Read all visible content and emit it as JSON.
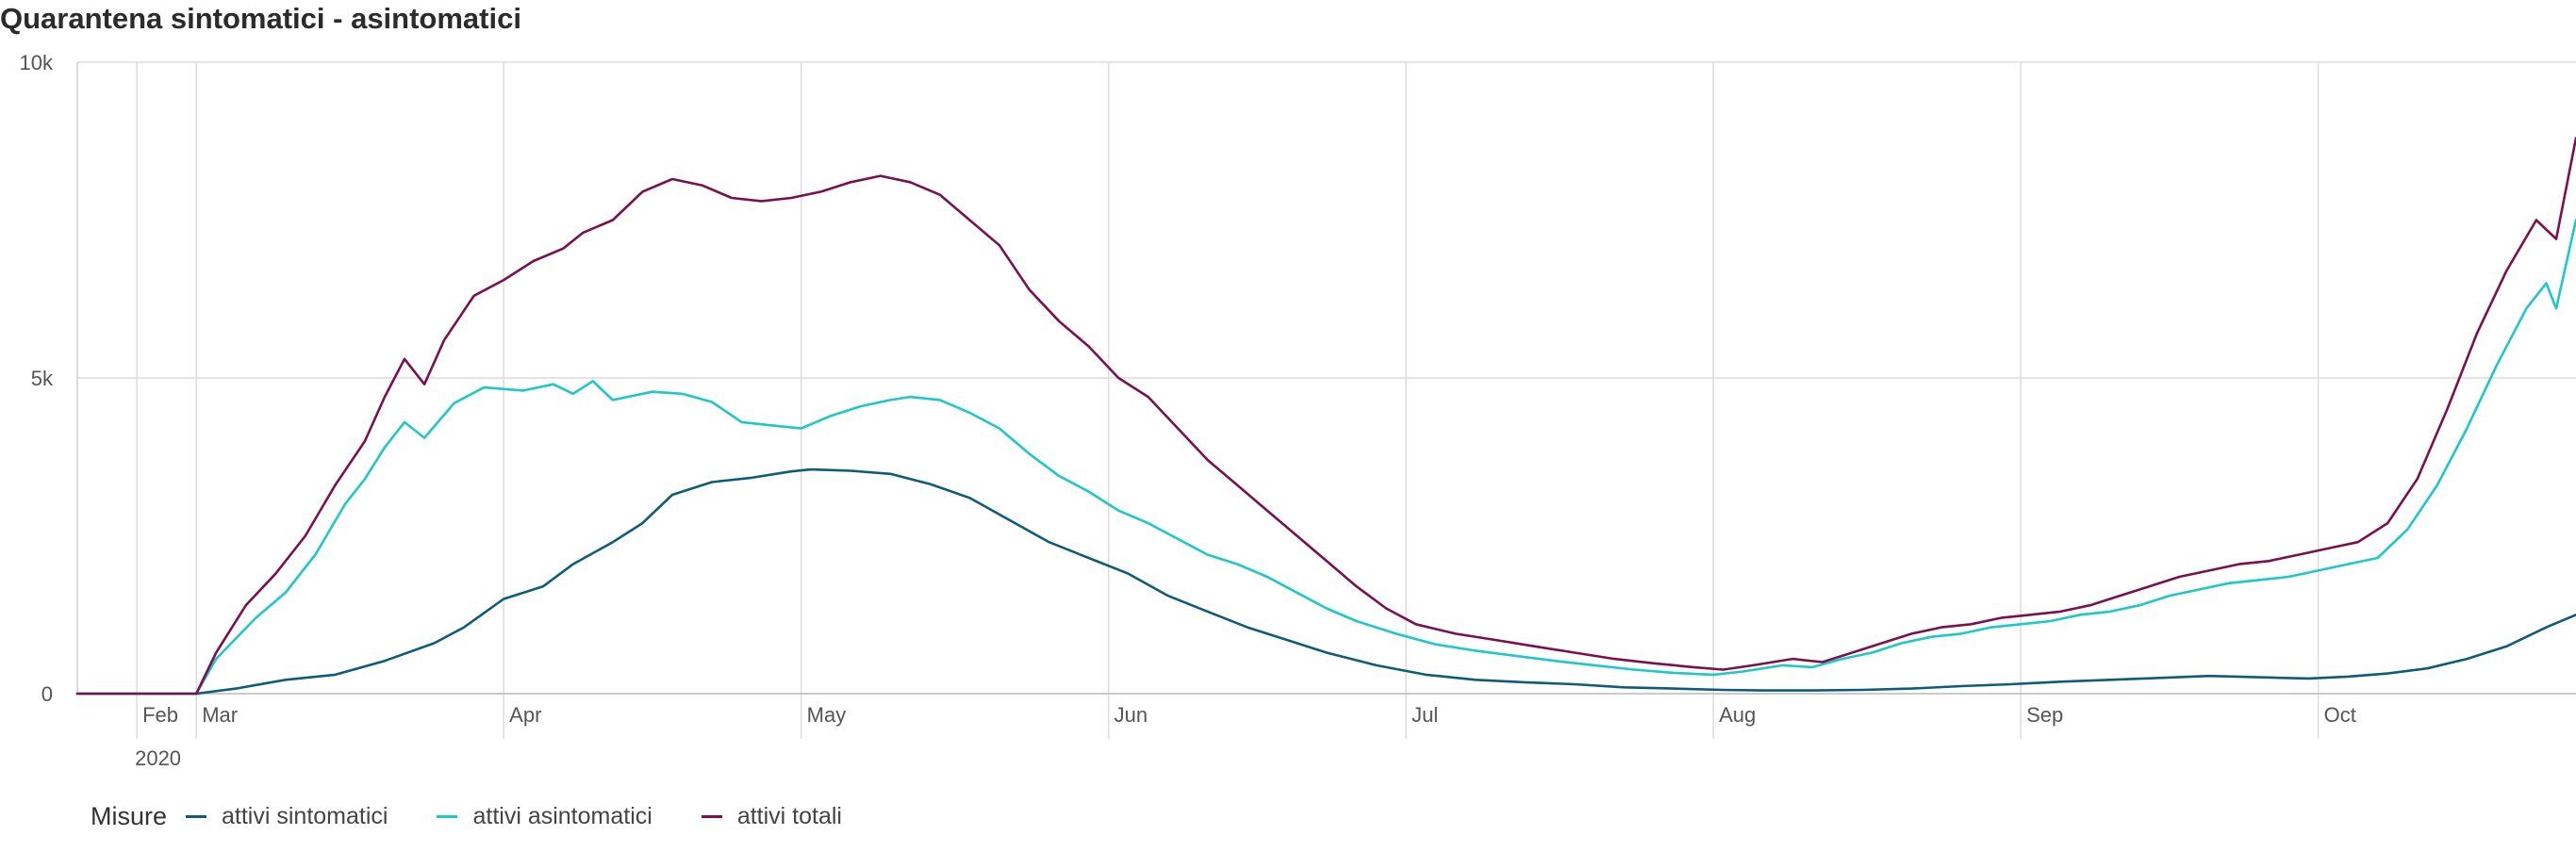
{
  "title": "Quarantena sintomatici - asintomatici",
  "legend": {
    "title": "Misure",
    "items": [
      {
        "label": "attivi sintomatici",
        "color": "#0f5c7a"
      },
      {
        "label": "attivi asintomatici",
        "color": "#1ec8c8"
      },
      {
        "label": "attivi totali",
        "color": "#7a1050"
      }
    ]
  },
  "chart_data": {
    "type": "line",
    "title": "Quarantena sintomatici - asintomatici",
    "xlabel": "",
    "ylabel": "",
    "x_range": [
      "2020-02-18",
      "2020-10-27"
    ],
    "ylim": [
      0,
      10000
    ],
    "y_ticks": [
      {
        "value": 0,
        "label": "0"
      },
      {
        "value": 5000,
        "label": "5k"
      },
      {
        "value": 10000,
        "label": "10k"
      }
    ],
    "x_ticks": [
      {
        "date": "2020-02-24",
        "label": "Feb"
      },
      {
        "date": "2020-03-01",
        "label": "Mar"
      },
      {
        "date": "2020-04-01",
        "label": "Apr"
      },
      {
        "date": "2020-05-01",
        "label": "May"
      },
      {
        "date": "2020-06-01",
        "label": "Jun"
      },
      {
        "date": "2020-07-01",
        "label": "Jul"
      },
      {
        "date": "2020-08-01",
        "label": "Aug"
      },
      {
        "date": "2020-09-01",
        "label": "Sep"
      },
      {
        "date": "2020-10-01",
        "label": "Oct"
      }
    ],
    "year_label": "2020",
    "grid": true,
    "legend_position": "bottom-left",
    "series": [
      {
        "name": "attivi sintomatici",
        "color": "#0f5c7a",
        "points": [
          [
            "2020-02-18",
            0
          ],
          [
            "2020-02-25",
            0
          ],
          [
            "2020-03-01",
            0
          ],
          [
            "2020-03-05",
            80
          ],
          [
            "2020-03-10",
            220
          ],
          [
            "2020-03-15",
            300
          ],
          [
            "2020-03-20",
            520
          ],
          [
            "2020-03-25",
            800
          ],
          [
            "2020-03-28",
            1050
          ],
          [
            "2020-04-01",
            1500
          ],
          [
            "2020-04-05",
            1700
          ],
          [
            "2020-04-08",
            2050
          ],
          [
            "2020-04-12",
            2400
          ],
          [
            "2020-04-15",
            2700
          ],
          [
            "2020-04-18",
            3150
          ],
          [
            "2020-04-22",
            3350
          ],
          [
            "2020-04-26",
            3420
          ],
          [
            "2020-04-30",
            3520
          ],
          [
            "2020-05-02",
            3550
          ],
          [
            "2020-05-06",
            3530
          ],
          [
            "2020-05-10",
            3480
          ],
          [
            "2020-05-14",
            3320
          ],
          [
            "2020-05-18",
            3100
          ],
          [
            "2020-05-22",
            2750
          ],
          [
            "2020-05-26",
            2400
          ],
          [
            "2020-05-30",
            2150
          ],
          [
            "2020-06-03",
            1900
          ],
          [
            "2020-06-07",
            1550
          ],
          [
            "2020-06-11",
            1300
          ],
          [
            "2020-06-15",
            1050
          ],
          [
            "2020-06-19",
            850
          ],
          [
            "2020-06-23",
            650
          ],
          [
            "2020-06-28",
            450
          ],
          [
            "2020-07-03",
            300
          ],
          [
            "2020-07-08",
            220
          ],
          [
            "2020-07-13",
            180
          ],
          [
            "2020-07-18",
            150
          ],
          [
            "2020-07-23",
            100
          ],
          [
            "2020-07-28",
            80
          ],
          [
            "2020-08-02",
            60
          ],
          [
            "2020-08-06",
            50
          ],
          [
            "2020-08-11",
            50
          ],
          [
            "2020-08-16",
            60
          ],
          [
            "2020-08-21",
            80
          ],
          [
            "2020-08-26",
            120
          ],
          [
            "2020-08-31",
            150
          ],
          [
            "2020-09-05",
            190
          ],
          [
            "2020-09-10",
            220
          ],
          [
            "2020-09-15",
            250
          ],
          [
            "2020-09-20",
            280
          ],
          [
            "2020-09-25",
            260
          ],
          [
            "2020-09-30",
            240
          ],
          [
            "2020-10-04",
            270
          ],
          [
            "2020-10-08",
            320
          ],
          [
            "2020-10-12",
            400
          ],
          [
            "2020-10-16",
            550
          ],
          [
            "2020-10-20",
            750
          ],
          [
            "2020-10-24",
            1050
          ],
          [
            "2020-10-27",
            1250
          ]
        ]
      },
      {
        "name": "attivi asintomatici",
        "color": "#1ec8c8",
        "points": [
          [
            "2020-02-18",
            0
          ],
          [
            "2020-02-25",
            0
          ],
          [
            "2020-03-01",
            0
          ],
          [
            "2020-03-03",
            550
          ],
          [
            "2020-03-07",
            1200
          ],
          [
            "2020-03-10",
            1600
          ],
          [
            "2020-03-13",
            2200
          ],
          [
            "2020-03-16",
            3000
          ],
          [
            "2020-03-18",
            3400
          ],
          [
            "2020-03-20",
            3900
          ],
          [
            "2020-03-22",
            4300
          ],
          [
            "2020-03-24",
            4050
          ],
          [
            "2020-03-27",
            4600
          ],
          [
            "2020-03-30",
            4850
          ],
          [
            "2020-04-03",
            4800
          ],
          [
            "2020-04-06",
            4900
          ],
          [
            "2020-04-08",
            4750
          ],
          [
            "2020-04-10",
            4950
          ],
          [
            "2020-04-12",
            4650
          ],
          [
            "2020-04-16",
            4780
          ],
          [
            "2020-04-19",
            4750
          ],
          [
            "2020-04-22",
            4620
          ],
          [
            "2020-04-25",
            4300
          ],
          [
            "2020-04-28",
            4250
          ],
          [
            "2020-05-01",
            4200
          ],
          [
            "2020-05-04",
            4400
          ],
          [
            "2020-05-07",
            4550
          ],
          [
            "2020-05-10",
            4650
          ],
          [
            "2020-05-12",
            4700
          ],
          [
            "2020-05-15",
            4650
          ],
          [
            "2020-05-18",
            4450
          ],
          [
            "2020-05-21",
            4200
          ],
          [
            "2020-05-24",
            3800
          ],
          [
            "2020-05-27",
            3450
          ],
          [
            "2020-05-30",
            3200
          ],
          [
            "2020-06-02",
            2900
          ],
          [
            "2020-06-05",
            2700
          ],
          [
            "2020-06-08",
            2450
          ],
          [
            "2020-06-11",
            2200
          ],
          [
            "2020-06-14",
            2050
          ],
          [
            "2020-06-17",
            1850
          ],
          [
            "2020-06-20",
            1600
          ],
          [
            "2020-06-23",
            1350
          ],
          [
            "2020-06-26",
            1150
          ],
          [
            "2020-06-30",
            950
          ],
          [
            "2020-07-04",
            780
          ],
          [
            "2020-07-08",
            680
          ],
          [
            "2020-07-12",
            600
          ],
          [
            "2020-07-16",
            520
          ],
          [
            "2020-07-20",
            450
          ],
          [
            "2020-07-24",
            380
          ],
          [
            "2020-07-28",
            330
          ],
          [
            "2020-08-01",
            300
          ],
          [
            "2020-08-04",
            350
          ],
          [
            "2020-08-08",
            450
          ],
          [
            "2020-08-11",
            420
          ],
          [
            "2020-08-14",
            550
          ],
          [
            "2020-08-17",
            650
          ],
          [
            "2020-08-20",
            800
          ],
          [
            "2020-08-23",
            900
          ],
          [
            "2020-08-26",
            950
          ],
          [
            "2020-08-29",
            1050
          ],
          [
            "2020-09-01",
            1100
          ],
          [
            "2020-09-04",
            1150
          ],
          [
            "2020-09-07",
            1250
          ],
          [
            "2020-09-10",
            1300
          ],
          [
            "2020-09-13",
            1400
          ],
          [
            "2020-09-16",
            1550
          ],
          [
            "2020-09-19",
            1650
          ],
          [
            "2020-09-22",
            1750
          ],
          [
            "2020-09-25",
            1800
          ],
          [
            "2020-09-28",
            1850
          ],
          [
            "2020-10-01",
            1950
          ],
          [
            "2020-10-04",
            2050
          ],
          [
            "2020-10-07",
            2150
          ],
          [
            "2020-10-10",
            2600
          ],
          [
            "2020-10-13",
            3300
          ],
          [
            "2020-10-16",
            4200
          ],
          [
            "2020-10-19",
            5200
          ],
          [
            "2020-10-22",
            6100
          ],
          [
            "2020-10-24",
            6500
          ],
          [
            "2020-10-25",
            6100
          ],
          [
            "2020-10-27",
            7500
          ]
        ]
      },
      {
        "name": "attivi totali",
        "color": "#7a1050",
        "points": [
          [
            "2020-02-18",
            0
          ],
          [
            "2020-02-25",
            0
          ],
          [
            "2020-03-01",
            0
          ],
          [
            "2020-03-03",
            650
          ],
          [
            "2020-03-06",
            1400
          ],
          [
            "2020-03-09",
            1900
          ],
          [
            "2020-03-12",
            2500
          ],
          [
            "2020-03-15",
            3300
          ],
          [
            "2020-03-18",
            4000
          ],
          [
            "2020-03-20",
            4700
          ],
          [
            "2020-03-22",
            5300
          ],
          [
            "2020-03-24",
            4900
          ],
          [
            "2020-03-26",
            5600
          ],
          [
            "2020-03-29",
            6300
          ],
          [
            "2020-04-01",
            6550
          ],
          [
            "2020-04-04",
            6850
          ],
          [
            "2020-04-07",
            7050
          ],
          [
            "2020-04-09",
            7300
          ],
          [
            "2020-04-12",
            7500
          ],
          [
            "2020-04-15",
            7950
          ],
          [
            "2020-04-18",
            8150
          ],
          [
            "2020-04-21",
            8050
          ],
          [
            "2020-04-24",
            7850
          ],
          [
            "2020-04-27",
            7800
          ],
          [
            "2020-04-30",
            7850
          ],
          [
            "2020-05-03",
            7950
          ],
          [
            "2020-05-06",
            8100
          ],
          [
            "2020-05-09",
            8200
          ],
          [
            "2020-05-12",
            8100
          ],
          [
            "2020-05-15",
            7900
          ],
          [
            "2020-05-18",
            7500
          ],
          [
            "2020-05-21",
            7100
          ],
          [
            "2020-05-24",
            6400
          ],
          [
            "2020-05-27",
            5900
          ],
          [
            "2020-05-30",
            5500
          ],
          [
            "2020-06-02",
            5000
          ],
          [
            "2020-06-05",
            4700
          ],
          [
            "2020-06-08",
            4200
          ],
          [
            "2020-06-11",
            3700
          ],
          [
            "2020-06-14",
            3300
          ],
          [
            "2020-06-17",
            2900
          ],
          [
            "2020-06-20",
            2500
          ],
          [
            "2020-06-23",
            2100
          ],
          [
            "2020-06-26",
            1700
          ],
          [
            "2020-06-29",
            1350
          ],
          [
            "2020-07-02",
            1100
          ],
          [
            "2020-07-06",
            950
          ],
          [
            "2020-07-10",
            850
          ],
          [
            "2020-07-14",
            750
          ],
          [
            "2020-07-18",
            650
          ],
          [
            "2020-07-22",
            550
          ],
          [
            "2020-07-26",
            480
          ],
          [
            "2020-07-30",
            420
          ],
          [
            "2020-08-02",
            380
          ],
          [
            "2020-08-05",
            450
          ],
          [
            "2020-08-09",
            550
          ],
          [
            "2020-08-12",
            500
          ],
          [
            "2020-08-15",
            650
          ],
          [
            "2020-08-18",
            800
          ],
          [
            "2020-08-21",
            950
          ],
          [
            "2020-08-24",
            1050
          ],
          [
            "2020-08-27",
            1100
          ],
          [
            "2020-08-30",
            1200
          ],
          [
            "2020-09-02",
            1250
          ],
          [
            "2020-09-05",
            1300
          ],
          [
            "2020-09-08",
            1400
          ],
          [
            "2020-09-11",
            1550
          ],
          [
            "2020-09-14",
            1700
          ],
          [
            "2020-09-17",
            1850
          ],
          [
            "2020-09-20",
            1950
          ],
          [
            "2020-09-23",
            2050
          ],
          [
            "2020-09-26",
            2100
          ],
          [
            "2020-09-29",
            2200
          ],
          [
            "2020-10-02",
            2300
          ],
          [
            "2020-10-05",
            2400
          ],
          [
            "2020-10-08",
            2700
          ],
          [
            "2020-10-11",
            3400
          ],
          [
            "2020-10-14",
            4500
          ],
          [
            "2020-10-17",
            5700
          ],
          [
            "2020-10-20",
            6700
          ],
          [
            "2020-10-23",
            7500
          ],
          [
            "2020-10-25",
            7200
          ],
          [
            "2020-10-27",
            8800
          ]
        ]
      }
    ]
  }
}
